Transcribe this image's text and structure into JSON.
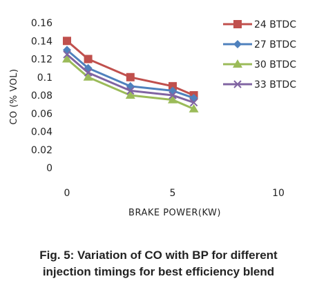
{
  "chart_data": {
    "type": "line",
    "x": [
      0,
      1,
      3,
      5,
      6
    ],
    "series": [
      {
        "name": "24 BTDC",
        "values": [
          0.14,
          0.12,
          0.1,
          0.09,
          0.08
        ],
        "color": "#c0504d",
        "marker": "square"
      },
      {
        "name": "27 BTDC",
        "values": [
          0.13,
          0.11,
          0.09,
          0.085,
          0.077
        ],
        "color": "#4f81bd",
        "marker": "diamond"
      },
      {
        "name": "30 BTDC",
        "values": [
          0.12,
          0.1,
          0.08,
          0.075,
          0.065
        ],
        "color": "#9bbb59",
        "marker": "triangle"
      },
      {
        "name": "33 BTDC",
        "values": [
          0.125,
          0.105,
          0.085,
          0.08,
          0.072
        ],
        "color": "#8064a2",
        "marker": "x"
      }
    ],
    "xlabel": "BRAKE POWER(KW)",
    "ylabel": "CO (% VOL)",
    "xlim": [
      0,
      10
    ],
    "ylim": [
      0,
      0.16
    ],
    "xticks": [
      "0",
      "5",
      "10"
    ],
    "xtick_values": [
      0,
      5,
      10
    ],
    "yticks": [
      "0",
      "0.02",
      "0.04",
      "0.06",
      "0.08",
      "0.1",
      "0.12",
      "0.14",
      "0.16"
    ],
    "ytick_values": [
      0,
      0.02,
      0.04,
      0.06,
      0.08,
      0.1,
      0.12,
      0.14,
      0.16
    ],
    "grid": false,
    "legend": "right"
  },
  "caption": {
    "line1": "Fig. 5: Variation of CO with BP for different",
    "line2": "injection timings for best efficiency blend"
  }
}
